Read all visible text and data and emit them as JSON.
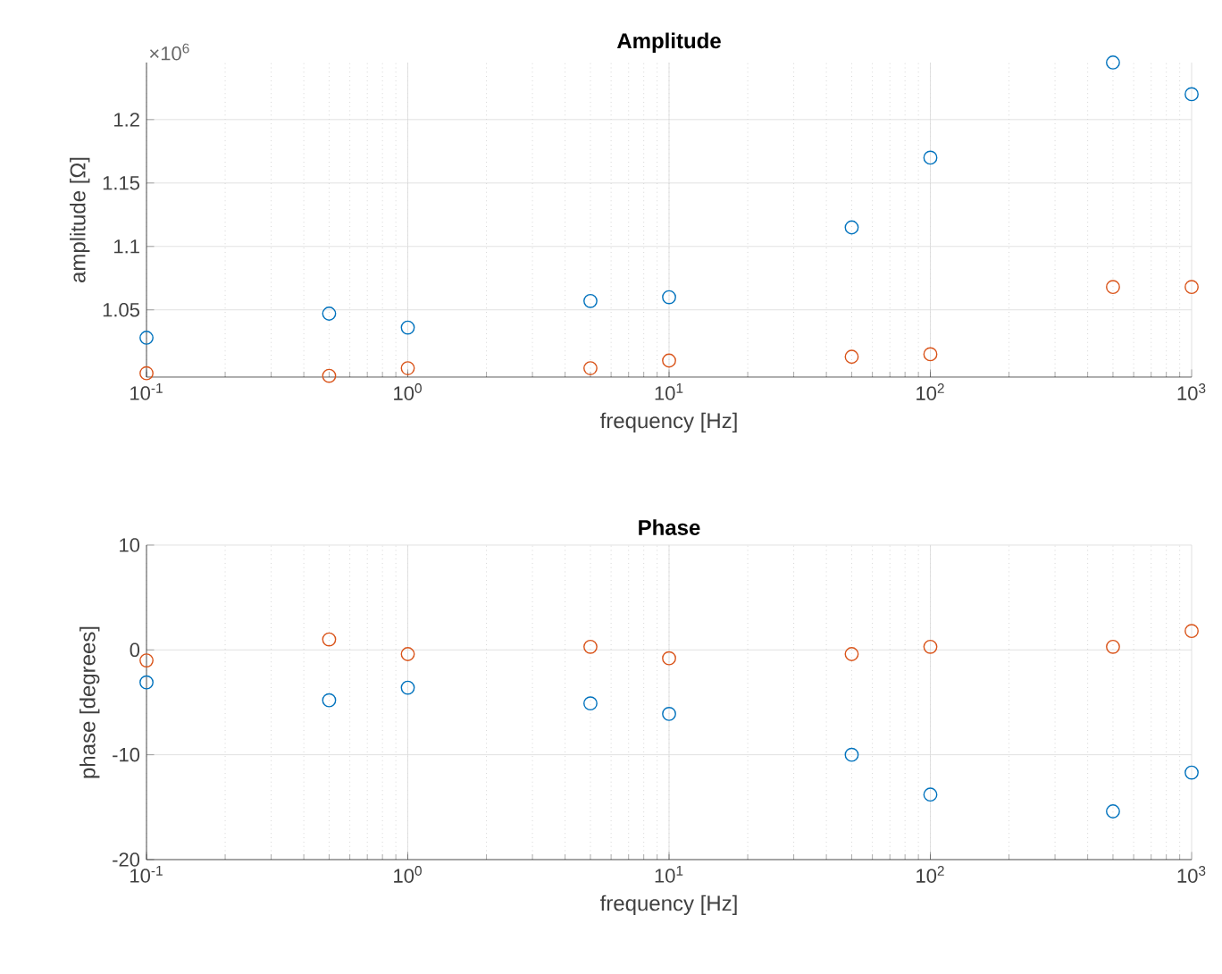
{
  "chart_data": [
    {
      "type": "scatter",
      "title": "Amplitude",
      "xlabel": "frequency [Hz]",
      "ylabel": "amplitude [Ω]",
      "annotations": [
        "×10$^{6}$"
      ],
      "x": [
        0.1,
        0.5,
        1,
        5,
        10,
        50,
        100,
        500,
        1000
      ],
      "series": [
        {
          "color": "#0072bd",
          "values": [
            1.028,
            1.047,
            1.036,
            1.057,
            1.06,
            1.115,
            1.17,
            1.245,
            1.22
          ]
        },
        {
          "color": "#d95319",
          "values": [
            1.0,
            0.998,
            1.004,
            1.004,
            1.01,
            1.013,
            1.015,
            1.068,
            1.068
          ]
        }
      ],
      "log": "x",
      "xlim": [
        0.1,
        1000
      ],
      "ylim": [
        0.997,
        1.245
      ],
      "xticks": [
        {
          "value": 0.1,
          "label": "10$^{-1}$"
        },
        {
          "value": 1,
          "label": "10$^{0}$"
        },
        {
          "value": 10,
          "label": "10$^{1}$"
        },
        {
          "value": 100,
          "label": "10$^{2}$"
        },
        {
          "value": 1000,
          "label": "10$^{3}$"
        }
      ],
      "yticks": [
        1.05,
        1.1,
        1.15,
        1.2
      ],
      "grid": true,
      "marker": "circle"
    },
    {
      "type": "scatter",
      "title": "Phase",
      "xlabel": "frequency [Hz]",
      "ylabel": "phase [degrees]",
      "x": [
        0.1,
        0.5,
        1,
        5,
        10,
        50,
        100,
        500,
        1000
      ],
      "series": [
        {
          "color": "#0072bd",
          "values": [
            -3.1,
            -4.8,
            -3.6,
            -5.1,
            -6.1,
            -10.0,
            -13.8,
            -15.4,
            -11.7
          ]
        },
        {
          "color": "#d95319",
          "values": [
            -1.0,
            1.0,
            -0.4,
            0.3,
            -0.8,
            -0.4,
            0.3,
            0.3,
            1.8
          ]
        }
      ],
      "log": "x",
      "xlim": [
        0.1,
        1000
      ],
      "ylim": [
        -20,
        10
      ],
      "xticks": [
        {
          "value": 0.1,
          "label": "10$^{-1}$"
        },
        {
          "value": 1,
          "label": "10$^{0}$"
        },
        {
          "value": 10,
          "label": "10$^{1}$"
        },
        {
          "value": 100,
          "label": "10$^{2}$"
        },
        {
          "value": 1000,
          "label": "10$^{3}$"
        }
      ],
      "yticks": [
        -20,
        -10,
        0,
        10
      ],
      "grid": true,
      "marker": "circle"
    }
  ]
}
